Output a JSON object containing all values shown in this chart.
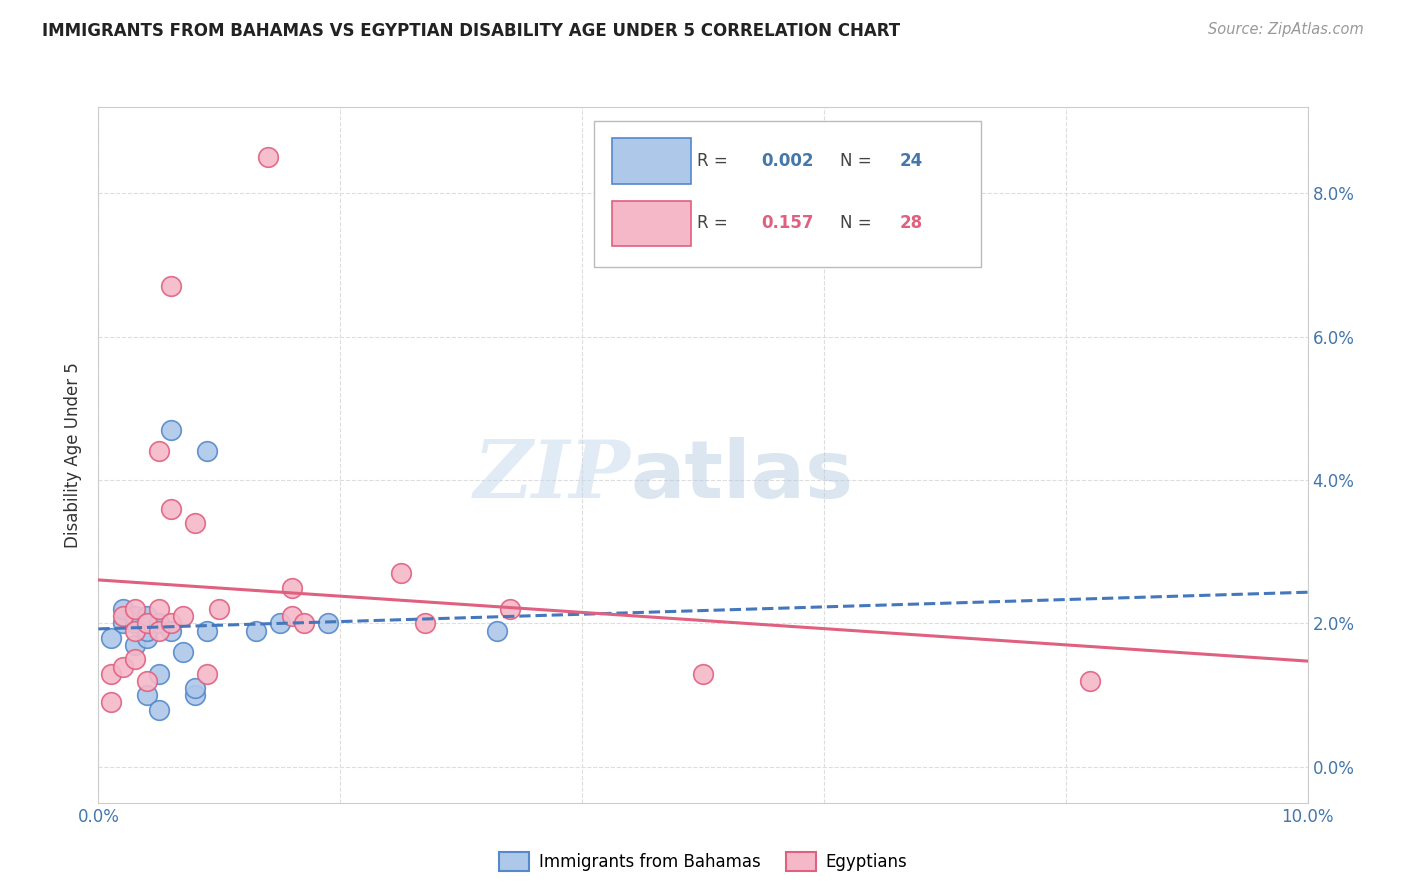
{
  "title": "IMMIGRANTS FROM BAHAMAS VS EGYPTIAN DISABILITY AGE UNDER 5 CORRELATION CHART",
  "source": "Source: ZipAtlas.com",
  "ylabel": "Disability Age Under 5",
  "xlim": [
    0.0,
    0.1
  ],
  "ylim": [
    -0.005,
    0.092
  ],
  "xticks": [
    0.0,
    0.02,
    0.04,
    0.06,
    0.08,
    0.1
  ],
  "yticks_right": [
    0.0,
    0.02,
    0.04,
    0.06,
    0.08
  ],
  "xticklabels": [
    "0.0%",
    "",
    "",
    "",
    "",
    "10.0%"
  ],
  "yticklabels_right": [
    "0.0%",
    "2.0%",
    "4.0%",
    "6.0%",
    "8.0%"
  ],
  "bahamas_color": "#adc8e8",
  "egyptian_color": "#f5b8c8",
  "bahamas_edge": "#5588cc",
  "egyptian_edge": "#e06080",
  "trendline_bahamas_color": "#4477bb",
  "trendline_egyptian_color": "#e06080",
  "bahamas_x": [
    0.001,
    0.002,
    0.002,
    0.003,
    0.003,
    0.003,
    0.004,
    0.004,
    0.004,
    0.004,
    0.005,
    0.005,
    0.005,
    0.006,
    0.006,
    0.007,
    0.008,
    0.008,
    0.009,
    0.009,
    0.013,
    0.015,
    0.019,
    0.033
  ],
  "bahamas_y": [
    0.018,
    0.02,
    0.022,
    0.017,
    0.02,
    0.021,
    0.01,
    0.018,
    0.019,
    0.021,
    0.008,
    0.013,
    0.02,
    0.019,
    0.047,
    0.016,
    0.01,
    0.011,
    0.019,
    0.044,
    0.019,
    0.02,
    0.02,
    0.019
  ],
  "egyptian_x": [
    0.001,
    0.001,
    0.002,
    0.002,
    0.003,
    0.003,
    0.003,
    0.004,
    0.004,
    0.005,
    0.005,
    0.005,
    0.006,
    0.006,
    0.006,
    0.007,
    0.008,
    0.009,
    0.01,
    0.014,
    0.016,
    0.016,
    0.017,
    0.025,
    0.027,
    0.05,
    0.082,
    0.034
  ],
  "egyptian_y": [
    0.009,
    0.013,
    0.014,
    0.021,
    0.015,
    0.019,
    0.022,
    0.012,
    0.02,
    0.019,
    0.022,
    0.044,
    0.02,
    0.036,
    0.067,
    0.021,
    0.034,
    0.013,
    0.022,
    0.085,
    0.021,
    0.025,
    0.02,
    0.027,
    0.02,
    0.013,
    0.012,
    0.022
  ],
  "watermark_zip": "ZIP",
  "watermark_atlas": "atlas",
  "background_color": "#ffffff",
  "grid_color": "#dddddd"
}
